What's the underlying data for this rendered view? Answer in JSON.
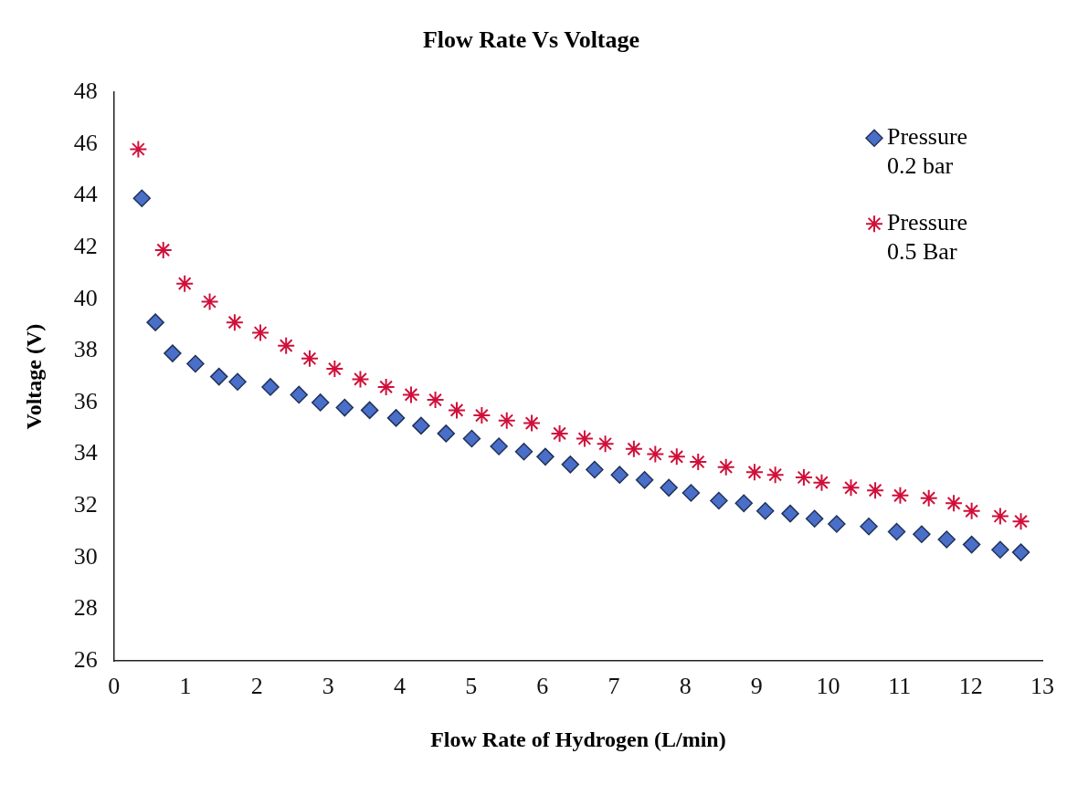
{
  "chart_data": {
    "type": "scatter",
    "title": "Flow Rate Vs Voltage",
    "xlabel": "Flow Rate of Hydrogen (L/min)",
    "ylabel": "Voltage (V)",
    "xlim": [
      0,
      13
    ],
    "xticks": [
      0,
      1,
      2,
      3,
      4,
      5,
      6,
      7,
      8,
      9,
      10,
      11,
      12,
      13
    ],
    "ylim": [
      26,
      48
    ],
    "yticks": [
      26,
      28,
      30,
      32,
      34,
      36,
      38,
      40,
      42,
      44,
      46,
      48
    ],
    "grid": false,
    "legend": "top right",
    "series": [
      {
        "name": "Pressure 0.2 bar",
        "color": "#4a6fc8",
        "marker": "diamond",
        "x": [
          0.39,
          0.58,
          0.82,
          1.14,
          1.47,
          1.73,
          2.19,
          2.59,
          2.89,
          3.23,
          3.58,
          3.95,
          4.3,
          4.65,
          5.01,
          5.39,
          5.74,
          6.04,
          6.39,
          6.73,
          7.08,
          7.43,
          7.77,
          8.08,
          8.47,
          8.82,
          9.12,
          9.47,
          9.81,
          10.12,
          10.57,
          10.96,
          11.31,
          11.66,
          12.01,
          12.41,
          12.7
        ],
        "values": [
          43.9,
          39.1,
          37.9,
          37.5,
          37.0,
          36.8,
          36.6,
          36.3,
          36.0,
          35.8,
          35.7,
          35.4,
          35.1,
          34.8,
          34.6,
          34.3,
          34.1,
          33.9,
          33.6,
          33.4,
          33.2,
          33.0,
          32.7,
          32.5,
          32.2,
          32.1,
          31.8,
          31.7,
          31.5,
          31.3,
          31.2,
          31.0,
          30.9,
          30.7,
          30.5,
          30.3,
          30.2
        ]
      },
      {
        "name": "Pressure 0.5 Bar",
        "color": "#d0103a",
        "marker": "cross",
        "x": [
          0.34,
          0.69,
          0.99,
          1.34,
          1.69,
          2.05,
          2.41,
          2.74,
          3.09,
          3.45,
          3.81,
          4.16,
          4.5,
          4.8,
          5.15,
          5.5,
          5.85,
          6.24,
          6.59,
          6.88,
          7.28,
          7.58,
          7.88,
          8.18,
          8.57,
          8.97,
          9.26,
          9.66,
          9.91,
          10.32,
          10.66,
          11.01,
          11.41,
          11.76,
          12.01,
          12.41,
          12.7
        ],
        "values": [
          45.8,
          41.9,
          40.6,
          39.9,
          39.1,
          38.7,
          38.2,
          37.7,
          37.3,
          36.9,
          36.6,
          36.3,
          36.1,
          35.7,
          35.5,
          35.3,
          35.2,
          34.8,
          34.6,
          34.4,
          34.2,
          34.0,
          33.9,
          33.7,
          33.5,
          33.3,
          33.2,
          33.1,
          32.9,
          32.7,
          32.6,
          32.4,
          32.3,
          32.1,
          31.8,
          31.6,
          31.4
        ]
      }
    ]
  }
}
